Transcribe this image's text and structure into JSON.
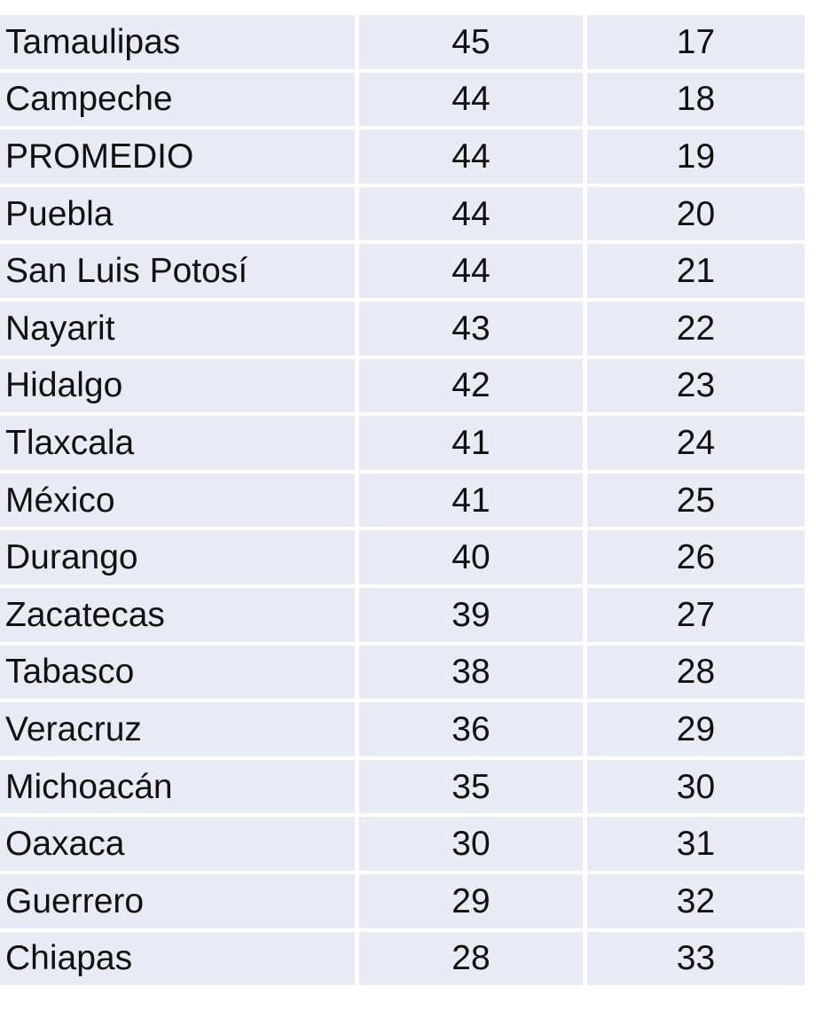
{
  "table": {
    "rows": [
      {
        "state": "Tamaulipas",
        "value": "45",
        "rank": "17"
      },
      {
        "state": "Campeche",
        "value": "44",
        "rank": "18"
      },
      {
        "state": "PROMEDIO",
        "value": "44",
        "rank": "19"
      },
      {
        "state": "Puebla",
        "value": "44",
        "rank": "20"
      },
      {
        "state": "San Luis Potosí",
        "value": "44",
        "rank": "21"
      },
      {
        "state": "Nayarit",
        "value": "43",
        "rank": "22"
      },
      {
        "state": "Hidalgo",
        "value": "42",
        "rank": "23"
      },
      {
        "state": "Tlaxcala",
        "value": "41",
        "rank": "24"
      },
      {
        "state": "México",
        "value": "41",
        "rank": "25"
      },
      {
        "state": "Durango",
        "value": "40",
        "rank": "26"
      },
      {
        "state": "Zacatecas",
        "value": "39",
        "rank": "27"
      },
      {
        "state": "Tabasco",
        "value": "38",
        "rank": "28"
      },
      {
        "state": "Veracruz",
        "value": "36",
        "rank": "29"
      },
      {
        "state": "Michoacán",
        "value": "35",
        "rank": "30"
      },
      {
        "state": "Oaxaca",
        "value": "30",
        "rank": "31"
      },
      {
        "state": "Guerrero",
        "value": "29",
        "rank": "32"
      },
      {
        "state": "Chiapas",
        "value": "28",
        "rank": "33"
      }
    ]
  }
}
